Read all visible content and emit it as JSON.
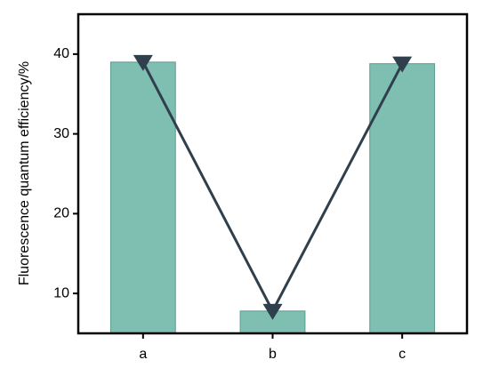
{
  "chart_data": {
    "type": "bar",
    "y_label": "Fluorescence quantum efficiency/%",
    "categories": [
      "a",
      "b",
      "c"
    ],
    "series": [
      {
        "type": "bar",
        "color": "#7fbfb2",
        "values": [
          39,
          7.8,
          38.8
        ]
      },
      {
        "type": "line",
        "color": "#2f3f4c",
        "values": [
          39,
          7.8,
          38.8
        ]
      }
    ],
    "ylim": [
      5,
      45
    ],
    "yticks": [
      10,
      20,
      30,
      40
    ]
  }
}
